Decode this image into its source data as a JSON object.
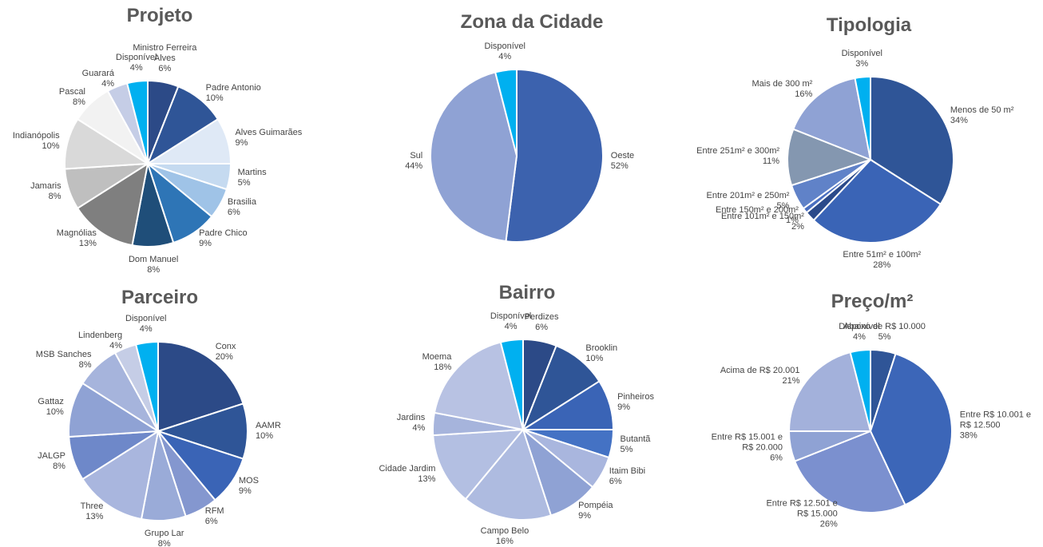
{
  "chart_data": [
    {
      "type": "pie",
      "title": "Projeto",
      "categories": [
        "Ministro Ferreira Alves",
        "Padre Antonio",
        "Alves Guimarães",
        "Martins",
        "Brasilia",
        "Padre Chico",
        "Dom Manuel",
        "Magnólias",
        "Jamaris",
        "Indianópolis",
        "Pascal",
        "Guarará",
        "Disponível"
      ],
      "values": [
        6,
        10,
        9,
        5,
        6,
        9,
        8,
        13,
        8,
        10,
        8,
        4,
        4
      ],
      "value_labels": [
        "6%",
        "10%",
        "9%",
        "5%",
        "6%",
        "9%",
        "8%",
        "13%",
        "8%",
        "10%",
        "8%",
        "4%",
        "4%"
      ],
      "colors": [
        "#2c4a87",
        "#2f5597",
        "#dfe9f6",
        "#c5daf0",
        "#9fc3e7",
        "#2e75b6",
        "#1f4e79",
        "#7f7f7f",
        "#bfbfbf",
        "#d9d9d9",
        "#f2f2f2",
        "#c5cde6",
        "#00b0f0"
      ]
    },
    {
      "type": "pie",
      "title": "Zona da Cidade",
      "categories": [
        "Oeste",
        "Sul",
        "Disponível"
      ],
      "values": [
        52,
        44,
        4
      ],
      "value_labels": [
        "52%",
        "44%",
        "4%"
      ],
      "colors": [
        "#3c62ae",
        "#8fa2d4",
        "#00b0f0"
      ]
    },
    {
      "type": "pie",
      "title": "Tipologia",
      "categories": [
        "Menos de 50 m²",
        "Entre 51m² e 100m²",
        "Entre 101m² e 150m²",
        "Entre 150m² e 200m²",
        "Entre 201m² e 250m²",
        "Entre 251m² e 300m²",
        "Mais de 300 m²",
        "Disponível"
      ],
      "values": [
        34,
        28,
        2,
        1,
        5,
        11,
        16,
        3
      ],
      "value_labels": [
        "34%",
        "28%",
        "2%",
        "1%",
        "5%",
        "11%",
        "16%",
        "3%"
      ],
      "colors": [
        "#2f5597",
        "#3a64b6",
        "#2b4a8a",
        "#4a6fc0",
        "#6082c8",
        "#8497b0",
        "#8fa2d4",
        "#00b0f0"
      ]
    },
    {
      "type": "pie",
      "title": "Parceiro",
      "categories": [
        "Conx",
        "AAMR",
        "MOS",
        "RFM",
        "Grupo Lar",
        "Three",
        "JALGP",
        "Gattaz",
        "MSB Sanches",
        "Lindenberg",
        "Disponível"
      ],
      "values": [
        20,
        10,
        9,
        6,
        8,
        13,
        8,
        10,
        8,
        4,
        4
      ],
      "value_labels": [
        "20%",
        "10%",
        "9%",
        "6%",
        "8%",
        "13%",
        "8%",
        "10%",
        "8%",
        "4%",
        "4%"
      ],
      "colors": [
        "#2c4a87",
        "#2f5597",
        "#3a64b6",
        "#8497cf",
        "#9aabd8",
        "#a9b6de",
        "#6e88c9",
        "#8fa2d4",
        "#a6b4dc",
        "#c5cde6",
        "#00b0f0"
      ]
    },
    {
      "type": "pie",
      "title": "Bairro",
      "categories": [
        "Perdizes",
        "Brooklin",
        "Pinheiros",
        "Butantã",
        "Itaim Bibi",
        "Pompéia",
        "Campo Belo",
        "Cidade Jardim",
        "Jardins",
        "Moema",
        "Disponível"
      ],
      "values": [
        6,
        10,
        9,
        5,
        6,
        9,
        16,
        13,
        4,
        18,
        4
      ],
      "value_labels": [
        "6%",
        "10%",
        "9%",
        "5%",
        "6%",
        "9%",
        "16%",
        "13%",
        "4%",
        "18%",
        "4%"
      ],
      "colors": [
        "#2c4a87",
        "#2f5597",
        "#3a64b6",
        "#4472c4",
        "#a9b6de",
        "#8fa2d4",
        "#aebbe0",
        "#b3bfe2",
        "#a6b4dc",
        "#b8c2e3",
        "#00b0f0"
      ]
    },
    {
      "type": "pie",
      "title": "Preço/m²",
      "categories": [
        "Abaixo de R$ 10.000",
        "Entre R$ 10.001 e R$ 12.500",
        "Entre R$ 12.501 e R$ 15.000",
        "Entre R$ 15.001 e R$ 20.000",
        "Acima de R$ 20.001",
        "Disponível"
      ],
      "values": [
        5,
        38,
        26,
        6,
        21,
        4
      ],
      "value_labels": [
        "5%",
        "38%",
        "26%",
        "6%",
        "21%",
        "4%"
      ],
      "colors": [
        "#2f5597",
        "#3c66b8",
        "#7b90cf",
        "#8fa2d4",
        "#a3b1db",
        "#00b0f0"
      ]
    }
  ]
}
